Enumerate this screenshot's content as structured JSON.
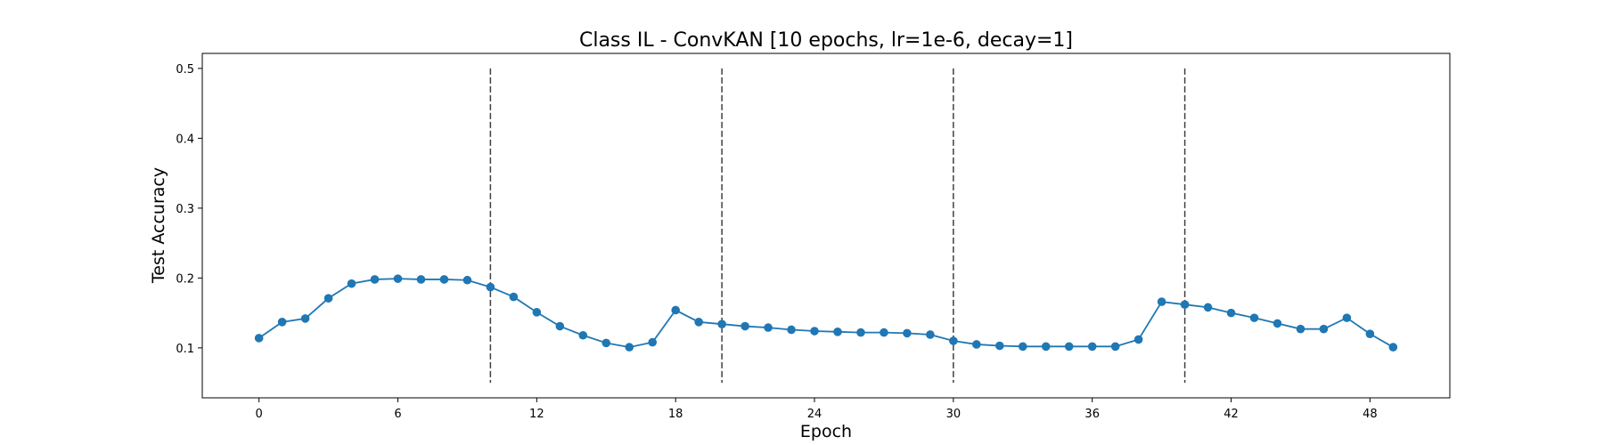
{
  "chart_data": {
    "type": "line",
    "title": "Class IL - ConvKAN [10 epochs, lr=1e-6, decay=1]",
    "xlabel": "Epoch",
    "ylabel": "Test Accuracy",
    "xlim": [
      -2.45,
      51.45
    ],
    "ylim": [
      0.0285,
      0.5215
    ],
    "xticks": [
      0,
      6,
      12,
      18,
      24,
      30,
      36,
      42,
      48
    ],
    "yticks": [
      0.1,
      0.2,
      0.3,
      0.4,
      0.5
    ],
    "xtick_labels": [
      "0",
      "6",
      "12",
      "18",
      "24",
      "30",
      "36",
      "42",
      "48"
    ],
    "ytick_labels": [
      "0.1",
      "0.2",
      "0.3",
      "0.4",
      "0.5"
    ],
    "grid": false,
    "task_boundaries": {
      "x": [
        10,
        20,
        30,
        40
      ],
      "ymin": 0.05,
      "ymax": 0.5,
      "style": "dashed",
      "color": "#404040"
    },
    "series": [
      {
        "name": "Test Accuracy",
        "color": "#1f77b4",
        "marker": "circle",
        "x": [
          0,
          1,
          2,
          3,
          4,
          5,
          6,
          7,
          8,
          9,
          10,
          11,
          12,
          13,
          14,
          15,
          16,
          17,
          18,
          19,
          20,
          21,
          22,
          23,
          24,
          25,
          26,
          27,
          28,
          29,
          30,
          31,
          32,
          33,
          34,
          35,
          36,
          37,
          38,
          39,
          40,
          41,
          42,
          43,
          44,
          45,
          46,
          47,
          48,
          49
        ],
        "values": [
          0.114,
          0.137,
          0.142,
          0.171,
          0.192,
          0.198,
          0.199,
          0.198,
          0.198,
          0.197,
          0.187,
          0.173,
          0.151,
          0.131,
          0.118,
          0.107,
          0.101,
          0.108,
          0.154,
          0.137,
          0.134,
          0.131,
          0.129,
          0.126,
          0.124,
          0.123,
          0.122,
          0.122,
          0.121,
          0.119,
          0.11,
          0.105,
          0.103,
          0.102,
          0.102,
          0.102,
          0.102,
          0.102,
          0.112,
          0.166,
          0.162,
          0.158,
          0.15,
          0.143,
          0.135,
          0.127,
          0.127,
          0.143,
          0.12,
          0.101
        ]
      }
    ]
  }
}
